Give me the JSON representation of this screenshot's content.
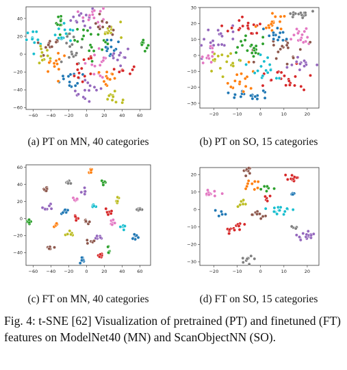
{
  "panels": [
    {
      "id": "a",
      "caption": "(a) PT on MN, 40 categories",
      "xticks": [
        -60,
        -40,
        -20,
        0,
        20,
        40,
        60
      ],
      "yticks": [
        -60,
        -40,
        -20,
        0,
        20,
        40
      ],
      "xlim": [
        -68,
        72
      ],
      "ylim": [
        -62,
        53
      ],
      "n_categories": 40,
      "clusters": [
        {
          "x": -5,
          "y": 40,
          "sx": 6,
          "sy": 7,
          "n": 14,
          "color": "#9467bd"
        },
        {
          "x": 8,
          "y": 44,
          "sx": 7,
          "sy": 6,
          "n": 14,
          "color": "#e377c2"
        },
        {
          "x": 28,
          "y": 28,
          "sx": 6,
          "sy": 6,
          "n": 12,
          "color": "#bcbd22"
        },
        {
          "x": -30,
          "y": 36,
          "sx": 6,
          "sy": 5,
          "n": 10,
          "color": "#2ca02c"
        },
        {
          "x": -60,
          "y": 15,
          "sx": 5,
          "sy": 7,
          "n": 12,
          "color": "#17becf"
        },
        {
          "x": 63,
          "y": 12,
          "sx": 4,
          "sy": 4,
          "n": 10,
          "color": "#2ca02c"
        },
        {
          "x": 45,
          "y": -18,
          "sx": 4,
          "sy": 3,
          "n": 8,
          "color": "#d62728"
        },
        {
          "x": 28,
          "y": -48,
          "sx": 5,
          "sy": 4,
          "n": 10,
          "color": "#bcbd22"
        },
        {
          "x": 0,
          "y": -40,
          "sx": 8,
          "sy": 7,
          "n": 14,
          "color": "#9467bd"
        },
        {
          "x": -18,
          "y": -28,
          "sx": 8,
          "sy": 6,
          "n": 14,
          "color": "#1f77b4"
        },
        {
          "x": -35,
          "y": -12,
          "sx": 7,
          "sy": 6,
          "n": 12,
          "color": "#ff7f0e"
        },
        {
          "x": -40,
          "y": 10,
          "sx": 7,
          "sy": 6,
          "n": 12,
          "color": "#8c564b"
        },
        {
          "x": -20,
          "y": 5,
          "sx": 8,
          "sy": 8,
          "n": 16,
          "color": "#7f7f7f"
        },
        {
          "x": 5,
          "y": 15,
          "sx": 9,
          "sy": 9,
          "n": 18,
          "color": "#2ca02c"
        },
        {
          "x": 15,
          "y": -10,
          "sx": 8,
          "sy": 7,
          "n": 14,
          "color": "#e377c2"
        },
        {
          "x": 30,
          "y": 5,
          "sx": 6,
          "sy": 6,
          "n": 12,
          "color": "#1f77b4"
        },
        {
          "x": 25,
          "y": -28,
          "sx": 6,
          "sy": 5,
          "n": 12,
          "color": "#ff7f0e"
        },
        {
          "x": -5,
          "y": -15,
          "sx": 8,
          "sy": 7,
          "n": 14,
          "color": "#d62728"
        },
        {
          "x": -25,
          "y": 22,
          "sx": 6,
          "sy": 6,
          "n": 12,
          "color": "#17becf"
        },
        {
          "x": 18,
          "y": 30,
          "sx": 6,
          "sy": 5,
          "n": 10,
          "color": "#8c564b"
        },
        {
          "x": -48,
          "y": -2,
          "sx": 5,
          "sy": 6,
          "n": 10,
          "color": "#bcbd22"
        },
        {
          "x": 38,
          "y": -5,
          "sx": 5,
          "sy": 5,
          "n": 10,
          "color": "#9467bd"
        }
      ]
    },
    {
      "id": "b",
      "caption": "(b) PT on SO, 15 categories",
      "xticks": [
        -20,
        -10,
        0,
        10,
        20
      ],
      "yticks": [
        -30,
        -20,
        -10,
        0,
        10,
        20,
        30
      ],
      "xlim": [
        -26,
        25
      ],
      "ylim": [
        -33,
        30
      ],
      "n_categories": 15,
      "clusters": [
        {
          "x": 16,
          "y": 26,
          "sx": 2.5,
          "sy": 1.5,
          "n": 14,
          "color": "#7f7f7f"
        },
        {
          "x": 18,
          "y": 12,
          "sx": 2.5,
          "sy": 3,
          "n": 16,
          "color": "#e377c2"
        },
        {
          "x": -18,
          "y": 10,
          "sx": 4,
          "sy": 4,
          "n": 22,
          "color": "#9467bd"
        },
        {
          "x": -8,
          "y": 18,
          "sx": 4,
          "sy": 4,
          "n": 18,
          "color": "#d62728"
        },
        {
          "x": 5,
          "y": 20,
          "sx": 4,
          "sy": 3,
          "n": 16,
          "color": "#ff7f0e"
        },
        {
          "x": 10,
          "y": 5,
          "sx": 4,
          "sy": 4,
          "n": 18,
          "color": "#8c564b"
        },
        {
          "x": -5,
          "y": 5,
          "sx": 5,
          "sy": 5,
          "n": 20,
          "color": "#2ca02c"
        },
        {
          "x": -15,
          "y": -5,
          "sx": 4,
          "sy": 4,
          "n": 16,
          "color": "#bcbd22"
        },
        {
          "x": -5,
          "y": -25,
          "sx": 4,
          "sy": 2,
          "n": 18,
          "color": "#1f77b4"
        },
        {
          "x": 10,
          "y": -15,
          "sx": 5,
          "sy": 4,
          "n": 20,
          "color": "#d62728"
        },
        {
          "x": -10,
          "y": -15,
          "sx": 4,
          "sy": 4,
          "n": 16,
          "color": "#ff7f0e"
        },
        {
          "x": 2,
          "y": -8,
          "sx": 4,
          "sy": 4,
          "n": 16,
          "color": "#17becf"
        },
        {
          "x": 18,
          "y": -5,
          "sx": 3,
          "sy": 3,
          "n": 12,
          "color": "#9467bd"
        },
        {
          "x": -22,
          "y": 0,
          "sx": 2,
          "sy": 3,
          "n": 10,
          "color": "#e377c2"
        },
        {
          "x": 5,
          "y": 12,
          "sx": 4,
          "sy": 3,
          "n": 14,
          "color": "#1f77b4"
        }
      ]
    },
    {
      "id": "c",
      "caption": "(c) FT on MN, 40 categories",
      "xticks": [
        -60,
        -40,
        -20,
        0,
        20,
        40,
        60
      ],
      "yticks": [
        -40,
        -20,
        0,
        20,
        40,
        60
      ],
      "xlim": [
        -68,
        72
      ],
      "ylim": [
        -55,
        63
      ],
      "n_categories": 40,
      "clusters": [
        {
          "x": 5,
          "y": 55,
          "sx": 2,
          "sy": 2,
          "n": 7,
          "color": "#ff7f0e"
        },
        {
          "x": -20,
          "y": 43,
          "sx": 2,
          "sy": 2,
          "n": 7,
          "color": "#7f7f7f"
        },
        {
          "x": 20,
          "y": 43,
          "sx": 2,
          "sy": 2,
          "n": 6,
          "color": "#2ca02c"
        },
        {
          "x": -45,
          "y": 35,
          "sx": 2,
          "sy": 2,
          "n": 7,
          "color": "#8c564b"
        },
        {
          "x": -2,
          "y": 32,
          "sx": 2,
          "sy": 2,
          "n": 6,
          "color": "#9467bd"
        },
        {
          "x": 35,
          "y": 22,
          "sx": 2,
          "sy": 2,
          "n": 6,
          "color": "#bcbd22"
        },
        {
          "x": -12,
          "y": 22,
          "sx": 2,
          "sy": 2,
          "n": 6,
          "color": "#e377c2"
        },
        {
          "x": -45,
          "y": 12,
          "sx": 2.5,
          "sy": 2,
          "n": 7,
          "color": "#9467bd"
        },
        {
          "x": -25,
          "y": 10,
          "sx": 2.5,
          "sy": 2,
          "n": 7,
          "color": "#1f77b4"
        },
        {
          "x": 8,
          "y": 15,
          "sx": 2,
          "sy": 2,
          "n": 6,
          "color": "#17becf"
        },
        {
          "x": 25,
          "y": 8,
          "sx": 2.5,
          "sy": 2,
          "n": 7,
          "color": "#d62728"
        },
        {
          "x": 58,
          "y": 10,
          "sx": 2,
          "sy": 2,
          "n": 7,
          "color": "#7f7f7f"
        },
        {
          "x": -65,
          "y": -5,
          "sx": 1.5,
          "sy": 2,
          "n": 7,
          "color": "#2ca02c"
        },
        {
          "x": -35,
          "y": -8,
          "sx": 2,
          "sy": 2,
          "n": 6,
          "color": "#ff7f0e"
        },
        {
          "x": 0,
          "y": -5,
          "sx": 2.5,
          "sy": 2,
          "n": 7,
          "color": "#8c564b"
        },
        {
          "x": 30,
          "y": -5,
          "sx": 2,
          "sy": 2,
          "n": 7,
          "color": "#e377c2"
        },
        {
          "x": -20,
          "y": -18,
          "sx": 2,
          "sy": 2,
          "n": 6,
          "color": "#bcbd22"
        },
        {
          "x": 15,
          "y": -22,
          "sx": 2,
          "sy": 2,
          "n": 6,
          "color": "#9467bd"
        },
        {
          "x": 55,
          "y": -22,
          "sx": 2,
          "sy": 2,
          "n": 8,
          "color": "#1f77b4"
        },
        {
          "x": -40,
          "y": -35,
          "sx": 2,
          "sy": 2,
          "n": 7,
          "color": "#8c564b"
        },
        {
          "x": 5,
          "y": -28,
          "sx": 2,
          "sy": 2,
          "n": 6,
          "color": "#8c564b"
        },
        {
          "x": 25,
          "y": -38,
          "sx": 2,
          "sy": 2,
          "n": 7,
          "color": "#2ca02c"
        },
        {
          "x": -5,
          "y": -48,
          "sx": 2,
          "sy": 2,
          "n": 7,
          "color": "#1f77b4"
        },
        {
          "x": 15,
          "y": -42,
          "sx": 2.5,
          "sy": 2,
          "n": 7,
          "color": "#d62728"
        },
        {
          "x": 40,
          "y": -10,
          "sx": 2,
          "sy": 2,
          "n": 6,
          "color": "#17becf"
        },
        {
          "x": -10,
          "y": 0,
          "sx": 2,
          "sy": 2,
          "n": 6,
          "color": "#d62728"
        }
      ]
    },
    {
      "id": "d",
      "caption": "(d) FT on SO, 15 categories",
      "xticks": [
        -20,
        -10,
        0,
        10,
        20
      ],
      "yticks": [
        -30,
        -20,
        -10,
        0,
        10,
        20
      ],
      "xlim": [
        -26,
        25
      ],
      "ylim": [
        -32,
        24
      ],
      "n_categories": 15,
      "clusters": [
        {
          "x": -6,
          "y": 22,
          "sx": 1.5,
          "sy": 1.5,
          "n": 10,
          "color": "#8c564b"
        },
        {
          "x": 14,
          "y": 18,
          "sx": 2,
          "sy": 1.2,
          "n": 12,
          "color": "#d62728"
        },
        {
          "x": -5,
          "y": 14,
          "sx": 2,
          "sy": 1.5,
          "n": 9,
          "color": "#ff7f0e"
        },
        {
          "x": 2,
          "y": 12,
          "sx": 1.5,
          "sy": 1.5,
          "n": 7,
          "color": "#2ca02c"
        },
        {
          "x": -22,
          "y": 9,
          "sx": 2,
          "sy": 1,
          "n": 10,
          "color": "#e377c2"
        },
        {
          "x": 14,
          "y": 8,
          "sx": 1,
          "sy": 1,
          "n": 5,
          "color": "#1f77b4"
        },
        {
          "x": -8,
          "y": 3,
          "sx": 1.5,
          "sy": 1.5,
          "n": 8,
          "color": "#bcbd22"
        },
        {
          "x": 8,
          "y": -1,
          "sx": 2.5,
          "sy": 1.5,
          "n": 14,
          "color": "#17becf"
        },
        {
          "x": 0,
          "y": -3,
          "sx": 2,
          "sy": 1.5,
          "n": 10,
          "color": "#8c564b"
        },
        {
          "x": -12,
          "y": -10,
          "sx": 2,
          "sy": 2,
          "n": 14,
          "color": "#d62728"
        },
        {
          "x": 20,
          "y": -15,
          "sx": 2.5,
          "sy": 1.5,
          "n": 16,
          "color": "#9467bd"
        },
        {
          "x": 14,
          "y": -10,
          "sx": 1,
          "sy": 1,
          "n": 4,
          "color": "#7f7f7f"
        },
        {
          "x": -5,
          "y": -28,
          "sx": 1.5,
          "sy": 1,
          "n": 9,
          "color": "#7f7f7f"
        },
        {
          "x": -17,
          "y": -2,
          "sx": 1.2,
          "sy": 1.2,
          "n": 5,
          "color": "#1f77b4"
        },
        {
          "x": 3,
          "y": 5,
          "sx": 1.2,
          "sy": 1.2,
          "n": 5,
          "color": "#d62728"
        }
      ]
    }
  ],
  "figure_caption": "Fig. 4: t-SNE [62] Visualization of pretrained (PT) and finetuned (FT) features on ModelNet40 (MN) and ScanObjectNN (SO).",
  "chart_data": [
    {
      "type": "scatter",
      "title": "(a) PT on MN, 40 categories",
      "xlim": [
        -68,
        72
      ],
      "ylim": [
        -62,
        53
      ],
      "grid": false,
      "legend": "none"
    },
    {
      "type": "scatter",
      "title": "(b) PT on SO, 15 categories",
      "xlim": [
        -26,
        25
      ],
      "ylim": [
        -33,
        30
      ],
      "grid": false,
      "legend": "none"
    },
    {
      "type": "scatter",
      "title": "(c) FT on MN, 40 categories",
      "xlim": [
        -68,
        72
      ],
      "ylim": [
        -55,
        63
      ],
      "grid": false,
      "legend": "none"
    },
    {
      "type": "scatter",
      "title": "(d) FT on SO, 15 categories",
      "xlim": [
        -26,
        25
      ],
      "ylim": [
        -32,
        24
      ],
      "grid": false,
      "legend": "none"
    }
  ]
}
